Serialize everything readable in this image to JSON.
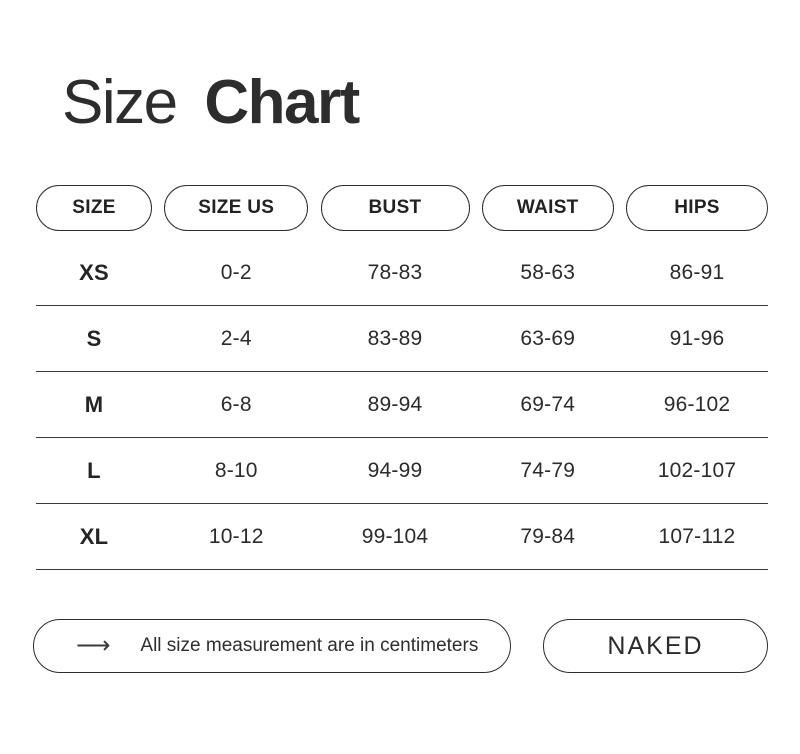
{
  "title": {
    "regular": "Size",
    "bold": "Chart"
  },
  "chart_data": {
    "type": "table",
    "title": "Size Chart",
    "columns": [
      "SIZE",
      "SIZE US",
      "BUST",
      "WAIST",
      "HIPS"
    ],
    "rows": [
      [
        "XS",
        "0-2",
        "78-83",
        "58-63",
        "86-91"
      ],
      [
        "S",
        "2-4",
        "83-89",
        "63-69",
        "91-96"
      ],
      [
        "M",
        "6-8",
        "89-94",
        "69-74",
        "96-102"
      ],
      [
        "L",
        "8-10",
        "94-99",
        "74-79",
        "102-107"
      ],
      [
        "XL",
        "10-12",
        "99-104",
        "79-84",
        "107-112"
      ]
    ],
    "units": "centimeters"
  },
  "footer": {
    "arrow_icon": "⟶",
    "note": "All size measurement are in centimeters",
    "brand": "NAKED"
  },
  "colors": {
    "background": "#ffffff",
    "text": "#2b2b2b",
    "border": "#2d2d2d",
    "row_line": "#3a3a3a"
  }
}
